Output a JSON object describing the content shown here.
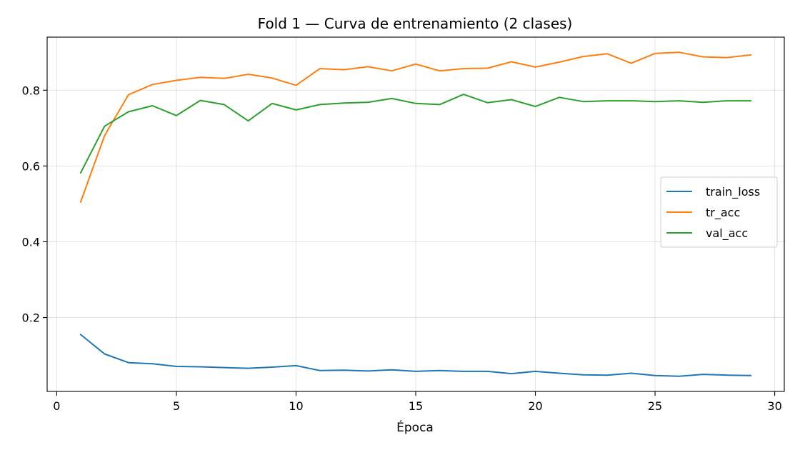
{
  "chart_data": {
    "type": "line",
    "title": "Fold 1 — Curva de entrenamiento (2 clases)",
    "xlabel": "Época",
    "ylabel": "",
    "xlim": [
      -0.4,
      30.4
    ],
    "ylim": [
      0.005,
      0.94
    ],
    "xticks": [
      0,
      5,
      10,
      15,
      20,
      25,
      30
    ],
    "yticks": [
      0.2,
      0.4,
      0.6,
      0.8
    ],
    "xtick_labels": [
      "0",
      "5",
      "10",
      "15",
      "20",
      "25",
      "30"
    ],
    "ytick_labels": [
      "0.2",
      "0.4",
      "0.6",
      "0.8"
    ],
    "grid": true,
    "legend_position": "center-right",
    "x": [
      1,
      2,
      3,
      4,
      5,
      6,
      7,
      8,
      9,
      10,
      11,
      12,
      13,
      14,
      15,
      16,
      17,
      18,
      19,
      20,
      21,
      22,
      23,
      24,
      25,
      26,
      27,
      28,
      29
    ],
    "series": [
      {
        "name": "train_loss",
        "color": "#1f77b4",
        "values": [
          0.155,
          0.104,
          0.081,
          0.078,
          0.071,
          0.07,
          0.068,
          0.066,
          0.069,
          0.073,
          0.06,
          0.061,
          0.059,
          0.062,
          0.058,
          0.06,
          0.058,
          0.058,
          0.052,
          0.058,
          0.053,
          0.049,
          0.048,
          0.053,
          0.047,
          0.045,
          0.05,
          0.048,
          0.047
        ]
      },
      {
        "name": "tr_acc",
        "color": "#ff7f0e",
        "values": [
          0.505,
          0.68,
          0.788,
          0.815,
          0.826,
          0.834,
          0.831,
          0.842,
          0.832,
          0.813,
          0.857,
          0.854,
          0.862,
          0.851,
          0.869,
          0.851,
          0.857,
          0.858,
          0.875,
          0.861,
          0.874,
          0.889,
          0.896,
          0.871,
          0.897,
          0.9,
          0.888,
          0.886,
          0.893
        ]
      },
      {
        "name": "val_acc",
        "color": "#2ca02c",
        "values": [
          0.582,
          0.705,
          0.743,
          0.759,
          0.733,
          0.773,
          0.762,
          0.719,
          0.765,
          0.748,
          0.762,
          0.766,
          0.768,
          0.778,
          0.765,
          0.762,
          0.789,
          0.767,
          0.775,
          0.757,
          0.781,
          0.77,
          0.772,
          0.772,
          0.77,
          0.772,
          0.768,
          0.772,
          0.772
        ]
      }
    ]
  }
}
